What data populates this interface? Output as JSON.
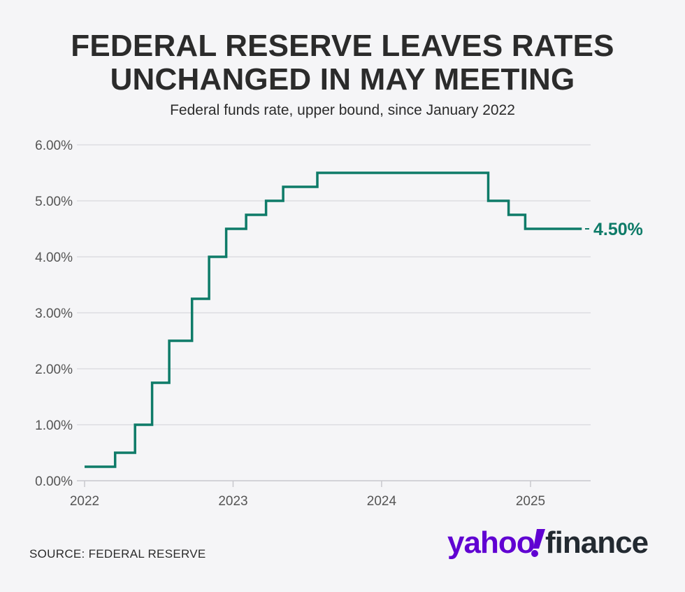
{
  "header": {
    "title_line1": "FEDERAL RESERVE LEAVES RATES",
    "title_line2": "UNCHANGED IN MAY MEETING",
    "subtitle": "Federal funds rate, upper bound, since January 2022"
  },
  "footer": {
    "source": "SOURCE: FEDERAL RESERVE",
    "logo_text": "yahoo!finance"
  },
  "colors": {
    "line": "#0e7b68",
    "grid": "#dddde2",
    "text": "#2b2b2b",
    "axis_text": "#555555",
    "logo_purple": "#6001d2",
    "logo_dark": "#232a31",
    "background": "#f5f5f7"
  },
  "chart_data": {
    "type": "line",
    "step": true,
    "title": "FEDERAL RESERVE LEAVES RATES UNCHANGED IN MAY MEETING",
    "subtitle": "Federal funds rate, upper bound, since January 2022",
    "x_ticks": [
      "2022",
      "2023",
      "2024",
      "2025"
    ],
    "y_ticks": [
      "0.00%",
      "1.00%",
      "2.00%",
      "3.00%",
      "4.00%",
      "5.00%",
      "6.00%"
    ],
    "ylim": [
      0,
      6
    ],
    "xlim": [
      "2022-01-01",
      "2025-05-31"
    ],
    "grid": true,
    "end_label": "4.50%",
    "series": [
      {
        "values": [
          {
            "date": "2022-01-01",
            "rate": 0.25
          },
          {
            "date": "2022-03-17",
            "rate": 0.5
          },
          {
            "date": "2022-05-05",
            "rate": 1.0
          },
          {
            "date": "2022-06-16",
            "rate": 1.75
          },
          {
            "date": "2022-07-28",
            "rate": 2.5
          },
          {
            "date": "2022-09-22",
            "rate": 3.25
          },
          {
            "date": "2022-11-03",
            "rate": 4.0
          },
          {
            "date": "2022-12-15",
            "rate": 4.5
          },
          {
            "date": "2023-02-02",
            "rate": 4.75
          },
          {
            "date": "2023-03-23",
            "rate": 5.0
          },
          {
            "date": "2023-05-04",
            "rate": 5.25
          },
          {
            "date": "2023-07-27",
            "rate": 5.5
          },
          {
            "date": "2024-09-19",
            "rate": 5.0
          },
          {
            "date": "2024-11-08",
            "rate": 4.75
          },
          {
            "date": "2024-12-19",
            "rate": 4.5
          },
          {
            "date": "2025-05-07",
            "rate": 4.5
          }
        ]
      }
    ]
  }
}
